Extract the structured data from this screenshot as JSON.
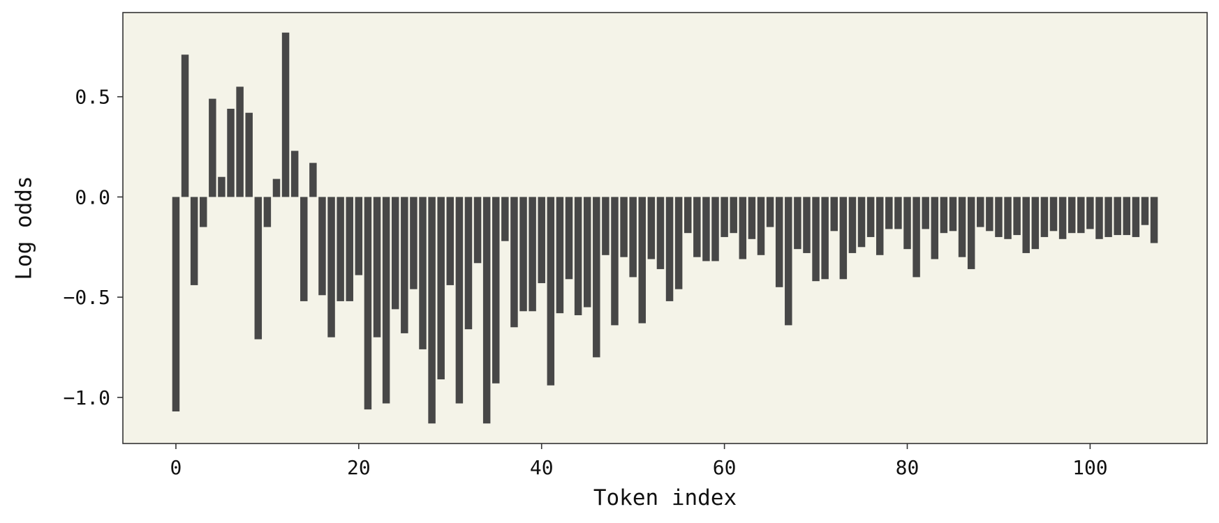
{
  "chart_data": {
    "type": "bar",
    "title": "",
    "xlabel": "Token index",
    "ylabel": "Log odds",
    "xlim": [
      -5.8,
      112.8
    ],
    "ylim": [
      -1.23,
      0.92
    ],
    "xticks": [
      0,
      20,
      40,
      60,
      80,
      100
    ],
    "yticks": [
      -1.0,
      -0.5,
      0.0,
      0.5
    ],
    "ytick_labels": [
      "−1.0",
      "−0.5",
      "0.0",
      "0.5"
    ],
    "grid": false,
    "legend": "none",
    "colors": {
      "bar": "#474747",
      "plot_background": "#f4f3e8",
      "axes_frame": "#333333",
      "figure_background": "#ffffff"
    },
    "x": [
      0,
      1,
      2,
      3,
      4,
      5,
      6,
      7,
      8,
      9,
      10,
      11,
      12,
      13,
      14,
      15,
      16,
      17,
      18,
      19,
      20,
      21,
      22,
      23,
      24,
      25,
      26,
      27,
      28,
      29,
      30,
      31,
      32,
      33,
      34,
      35,
      36,
      37,
      38,
      39,
      40,
      41,
      42,
      43,
      44,
      45,
      46,
      47,
      48,
      49,
      50,
      51,
      52,
      53,
      54,
      55,
      56,
      57,
      58,
      59,
      60,
      61,
      62,
      63,
      64,
      65,
      66,
      67,
      68,
      69,
      70,
      71,
      72,
      73,
      74,
      75,
      76,
      77,
      78,
      79,
      80,
      81,
      82,
      83,
      84,
      85,
      86,
      87,
      88,
      89,
      90,
      91,
      92,
      93,
      94,
      95,
      96,
      97,
      98,
      99,
      100,
      101,
      102,
      103,
      104,
      105,
      106,
      107
    ],
    "values": [
      -1.07,
      0.71,
      -0.44,
      -0.15,
      0.49,
      0.1,
      0.44,
      0.55,
      0.42,
      -0.71,
      -0.15,
      0.09,
      0.82,
      0.23,
      -0.52,
      0.17,
      -0.49,
      -0.7,
      -0.52,
      -0.52,
      -0.39,
      -1.06,
      -0.7,
      -1.03,
      -0.56,
      -0.68,
      -0.46,
      -0.76,
      -1.13,
      -0.91,
      -0.44,
      -1.03,
      -0.66,
      -0.33,
      -1.13,
      -0.93,
      -0.22,
      -0.65,
      -0.57,
      -0.57,
      -0.43,
      -0.94,
      -0.58,
      -0.41,
      -0.59,
      -0.55,
      -0.8,
      -0.29,
      -0.64,
      -0.3,
      -0.4,
      -0.63,
      -0.31,
      -0.36,
      -0.52,
      -0.46,
      -0.18,
      -0.3,
      -0.32,
      -0.32,
      -0.2,
      -0.18,
      -0.31,
      -0.21,
      -0.29,
      -0.15,
      -0.45,
      -0.64,
      -0.26,
      -0.28,
      -0.42,
      -0.41,
      -0.17,
      -0.41,
      -0.28,
      -0.25,
      -0.2,
      -0.29,
      -0.16,
      -0.16,
      -0.26,
      -0.4,
      -0.16,
      -0.31,
      -0.18,
      -0.17,
      -0.3,
      -0.36,
      -0.15,
      -0.17,
      -0.2,
      -0.21,
      -0.19,
      -0.28,
      -0.26,
      -0.2,
      -0.17,
      -0.21,
      -0.18,
      -0.18,
      -0.16,
      -0.21,
      -0.2,
      -0.19,
      -0.19,
      -0.2,
      -0.14,
      -0.23
    ]
  }
}
